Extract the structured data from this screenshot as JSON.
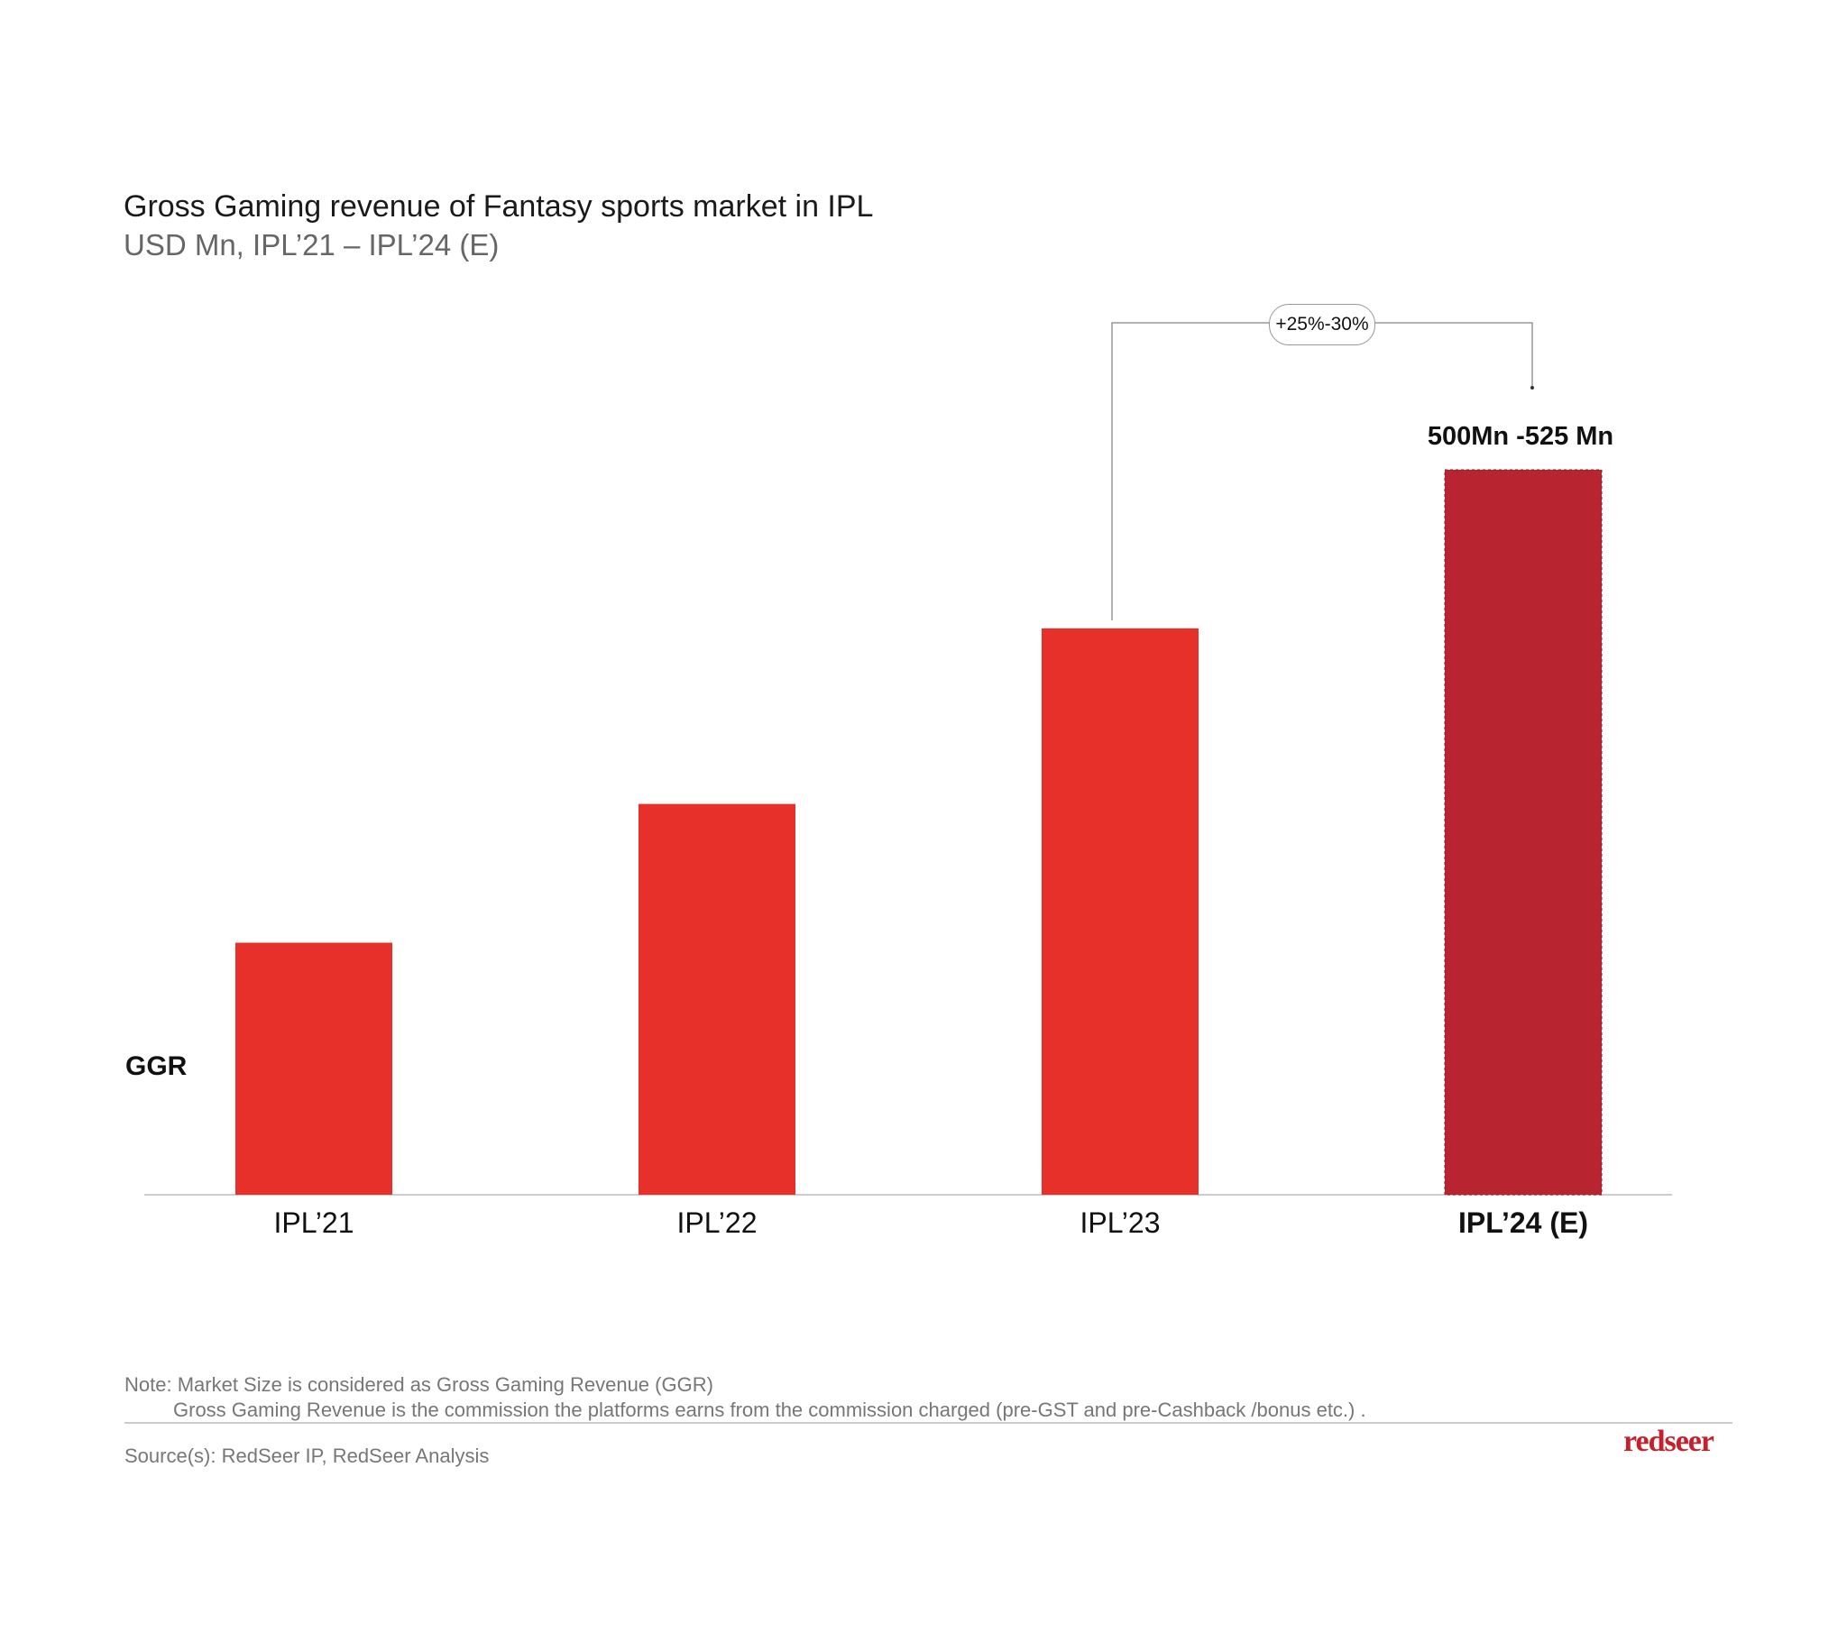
{
  "title": "Gross Gaming revenue of Fantasy sports market in IPL",
  "subtitle": "USD Mn, IPL’21 – IPL’24 (E)",
  "chart_data": {
    "type": "bar",
    "title": "Gross Gaming revenue of Fantasy sports market in IPL",
    "subtitle": "USD Mn, IPL’21 – IPL’24 (E)",
    "categories": [
      "IPL’21",
      "IPL’22",
      "IPL’23",
      "IPL’24 (E)"
    ],
    "series": [
      {
        "name": "GGR",
        "values": [
          178,
          276,
          400,
          512
        ]
      }
    ],
    "values_note": "Only IPL’24 (E) is labeled; other values estimated from bar heights",
    "data_labels": {
      "IPL’24 (E)": "500Mn -525 Mn"
    },
    "annotation": "+25%-30%",
    "row_label": "GGR",
    "xlabel": "",
    "ylabel": "",
    "ylim": [
      0,
      512
    ],
    "grid": false,
    "colors": {
      "actual": "#e8302b",
      "estimate": "#b8242f"
    }
  },
  "footer": {
    "note1": "Note: Market Size is considered as Gross Gaming Revenue (GGR)",
    "note2": "Gross Gaming Revenue is the commission the platforms earns from the commission charged (pre-GST and pre-Cashback /bonus etc.) .",
    "source": "Source(s): RedSeer IP, RedSeer Analysis",
    "logo": "redseer"
  }
}
